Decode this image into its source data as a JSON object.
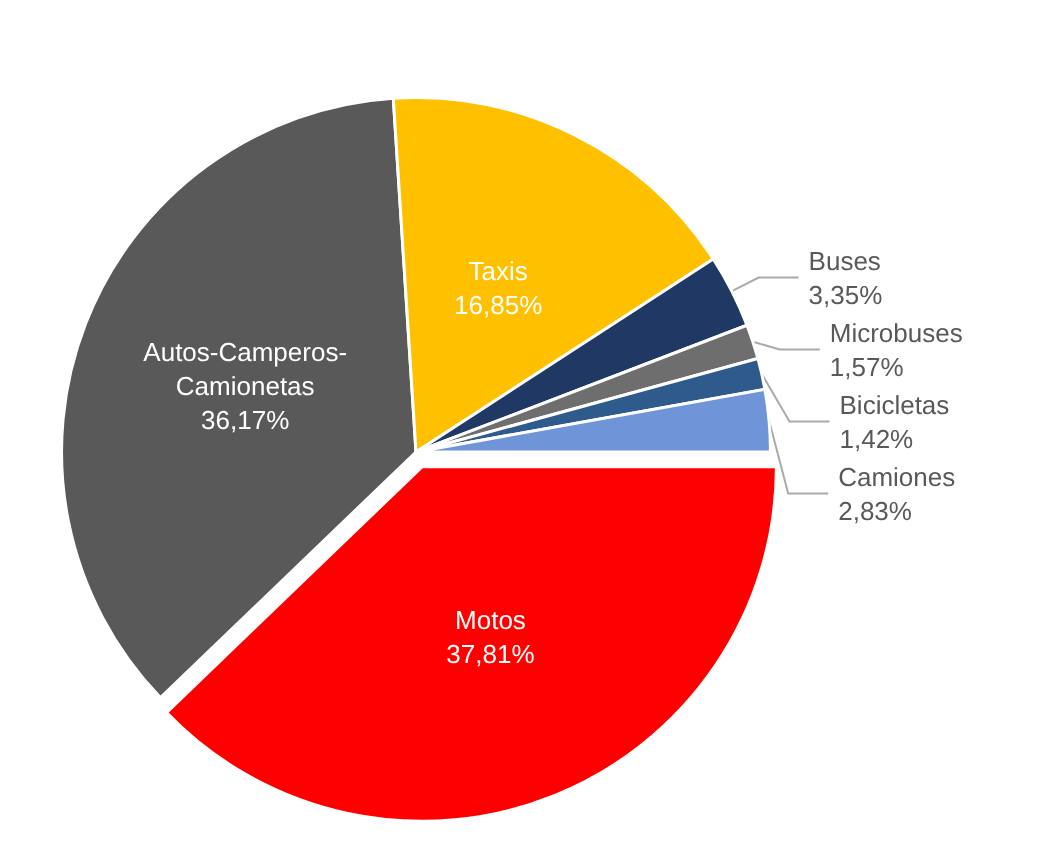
{
  "chart_data": {
    "type": "pie",
    "categories": [
      "Motos",
      "Autos-Camperos-\nCamionetas",
      "Taxis",
      "Buses",
      "Microbuses",
      "Bicicletas",
      "Camiones"
    ],
    "values": [
      37.81,
      36.17,
      16.85,
      3.35,
      1.57,
      1.42,
      2.83
    ],
    "value_labels": [
      "37,81%",
      "36,17%",
      "16,85%",
      "3,35%",
      "1,57%",
      "1,42%",
      "2,83%"
    ],
    "colors": [
      "#ff0000",
      "#595959",
      "#ffc000",
      "#203864",
      "#6e6e6e",
      "#2e5a8c",
      "#6f95d8"
    ],
    "legend": false
  }
}
